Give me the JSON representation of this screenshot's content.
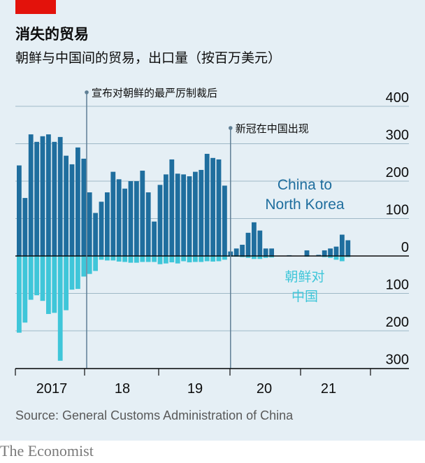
{
  "header": {
    "title": "消失的贸易",
    "subtitle": "朝鲜与中国间的贸易，出口量（按百万美元）"
  },
  "footer": {
    "source": "Source: General Customs Administration of China",
    "brand": "The Economist"
  },
  "colors": {
    "china_to_nk": "#1f6e9e",
    "nk_to_china": "#3fc6d9",
    "gridline": "#9fb8c6",
    "event_line": "#5f7f95",
    "background": "#e5eff5",
    "brand_red": "#e3120b"
  },
  "chart_data": {
    "type": "bar",
    "ylim": [
      -300,
      400
    ],
    "yticks": [
      {
        "value": 400,
        "label": "400"
      },
      {
        "value": 300,
        "label": "300"
      },
      {
        "value": 200,
        "label": "200"
      },
      {
        "value": 100,
        "label": "100"
      },
      {
        "value": 0,
        "label": "0"
      },
      {
        "value": -100,
        "label": "100"
      },
      {
        "value": -200,
        "label": "200"
      },
      {
        "value": -300,
        "label": "300"
      }
    ],
    "xticks": [
      {
        "month_index": 0,
        "label": "2017"
      },
      {
        "month_index": 12,
        "label": "18"
      },
      {
        "month_index": 24,
        "label": "19"
      },
      {
        "month_index": 36,
        "label": "20"
      },
      {
        "month_index": 48,
        "label": "21"
      }
    ],
    "n_months": 60,
    "events": [
      {
        "month_index": 11.5,
        "label": "宣布对朝鲜的最严厉制裁后"
      },
      {
        "month_index": 36,
        "label": "新冠在中国出现"
      }
    ],
    "series": [
      {
        "name": "China to North Korea",
        "label_lines": [
          "China to",
          "North Korea"
        ],
        "values": [
          242,
          155,
          325,
          305,
          320,
          325,
          305,
          318,
          268,
          245,
          290,
          260,
          170,
          115,
          145,
          170,
          225,
          205,
          180,
          200,
          200,
          228,
          170,
          92,
          190,
          218,
          258,
          220,
          218,
          213,
          225,
          230,
          273,
          262,
          258,
          188,
          12,
          20,
          30,
          62,
          90,
          68,
          20,
          20,
          0,
          0,
          2,
          0,
          0,
          15,
          0,
          3,
          15,
          20,
          25,
          57,
          42
        ]
      },
      {
        "name": "North Korea to China",
        "label_lines": [
          "朝鲜对",
          "中国"
        ],
        "values": [
          -205,
          -178,
          -117,
          -105,
          -120,
          -155,
          -152,
          -280,
          -145,
          -90,
          -88,
          -55,
          -48,
          -40,
          -10,
          -12,
          -12,
          -15,
          -16,
          -18,
          -18,
          -16,
          -16,
          -16,
          -22,
          -20,
          -17,
          -20,
          -14,
          -17,
          -16,
          -16,
          -14,
          -15,
          -14,
          -10,
          -2,
          -2,
          -3,
          -5,
          -8,
          -8,
          -5,
          -4,
          0,
          0,
          -1,
          0,
          0,
          -2,
          0,
          -1,
          -3,
          -5,
          -10,
          -14,
          -3
        ]
      }
    ]
  }
}
